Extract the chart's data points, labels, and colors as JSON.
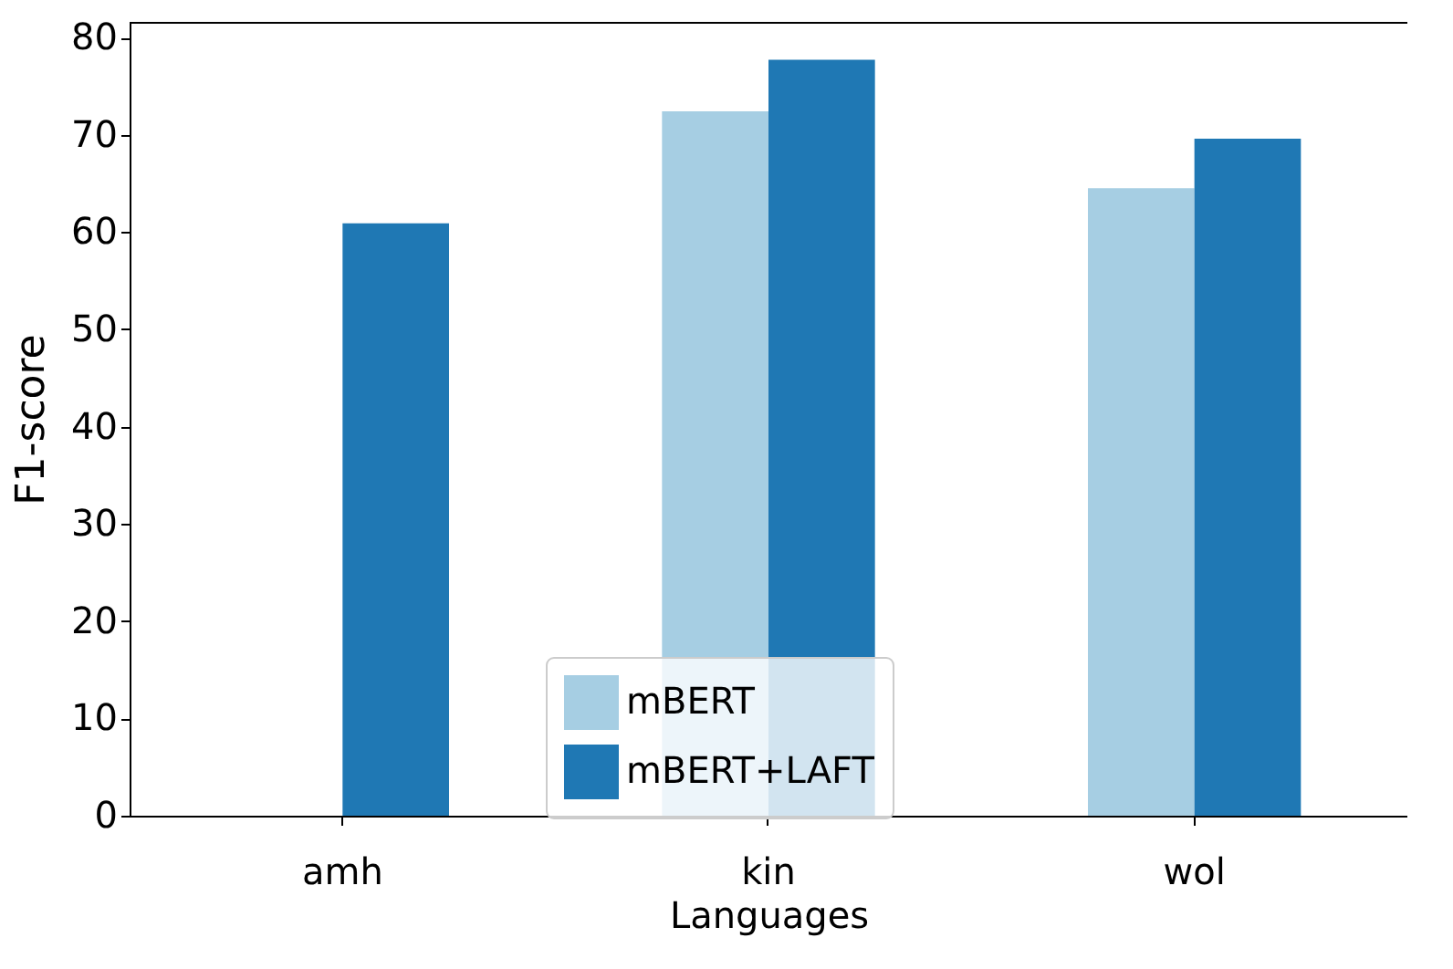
{
  "chart_data": {
    "type": "bar",
    "xlabel": "Languages",
    "ylabel": "F1-score",
    "categories": [
      "amh",
      "kin",
      "wol"
    ],
    "series": [
      {
        "name": "mBERT",
        "color": "#a6cee3",
        "values": [
          null,
          72.4,
          64.5
        ]
      },
      {
        "name": "mBERT+LAFT",
        "color": "#1f78b4",
        "values": [
          60.9,
          77.7,
          69.6
        ]
      }
    ],
    "ylim": [
      0,
      81.6
    ],
    "yticks": [
      0,
      10,
      20,
      30,
      40,
      50,
      60,
      70,
      80
    ],
    "grid": false,
    "legend": "bottom"
  }
}
